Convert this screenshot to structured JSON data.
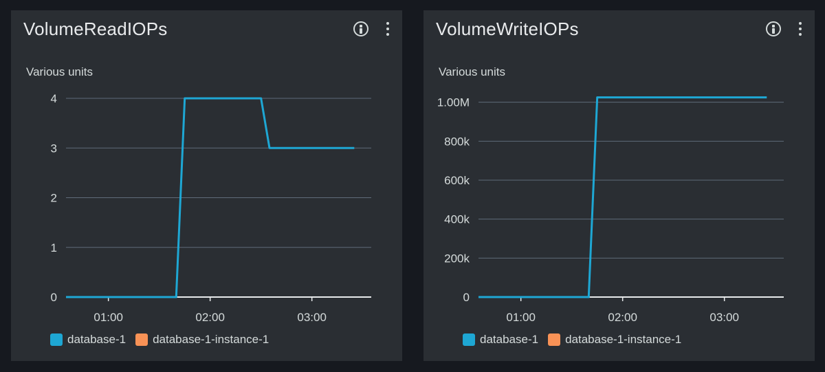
{
  "chart_data": [
    {
      "type": "line",
      "title": "VolumeReadIOPs",
      "ylabel": "Various units",
      "x_ticks": [
        "01:00",
        "02:00",
        "03:00"
      ],
      "x_range": [
        "00:35",
        "03:35"
      ],
      "y_ticks": [
        0,
        1,
        2,
        3,
        4
      ],
      "y_tick_labels": [
        "0",
        "1",
        "2",
        "3",
        "4"
      ],
      "ylim": [
        0,
        4
      ],
      "grid": true,
      "legend_position": "bottom-left",
      "series": [
        {
          "name": "database-1",
          "color": "#1ea7d4",
          "x": [
            "00:35",
            "01:40",
            "01:45",
            "02:30",
            "02:35",
            "03:25"
          ],
          "y": [
            0,
            0,
            4,
            4,
            3,
            3
          ]
        },
        {
          "name": "database-1-instance-1",
          "color": "#f89256",
          "x": [],
          "y": []
        }
      ]
    },
    {
      "type": "line",
      "title": "VolumeWriteIOPs",
      "ylabel": "Various units",
      "x_ticks": [
        "01:00",
        "02:00",
        "03:00"
      ],
      "x_range": [
        "00:35",
        "03:35"
      ],
      "y_ticks": [
        0,
        200000,
        400000,
        600000,
        800000,
        1000000
      ],
      "y_tick_labels": [
        "0",
        "200k",
        "400k",
        "600k",
        "800k",
        "1.00M"
      ],
      "ylim": [
        0,
        1020000
      ],
      "grid": true,
      "legend_position": "bottom-left",
      "series": [
        {
          "name": "database-1",
          "color": "#1ea7d4",
          "x": [
            "00:35",
            "01:40",
            "01:45",
            "03:25"
          ],
          "y": [
            0,
            0,
            1025000,
            1025000
          ]
        },
        {
          "name": "database-1-instance-1",
          "color": "#f89256",
          "x": [],
          "y": []
        }
      ]
    }
  ]
}
